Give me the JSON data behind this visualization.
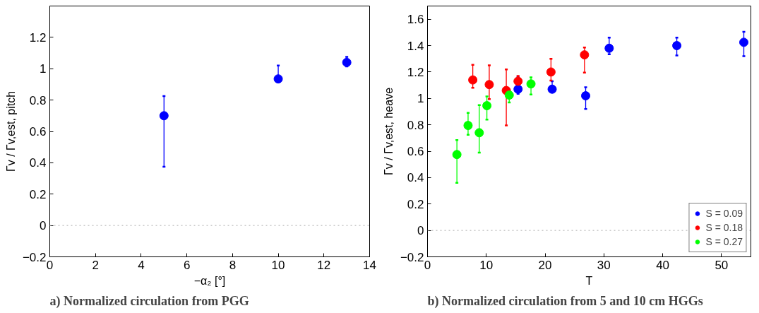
{
  "chart_data": [
    {
      "type": "scatter",
      "title": "a) Normalized circulation from PGG",
      "xlabel": "−α₂ [°]",
      "ylabel": "Γv / Γv,est, pitch",
      "xlim": [
        0,
        14
      ],
      "ylim": [
        -0.2,
        1.4
      ],
      "xticks": [
        0,
        2,
        4,
        6,
        8,
        10,
        12,
        14
      ],
      "yticks": [
        -0.2,
        0,
        0.2,
        0.4,
        0.6,
        0.8,
        1,
        1.2
      ],
      "marker": "circle",
      "grid": false,
      "legend": false,
      "series": [
        {
          "color": "#0000ff",
          "x": [
            5,
            10,
            13
          ],
          "values": [
            0.7,
            0.935,
            1.04
          ],
          "errors": [
            [
              0.375,
              0.825
            ],
            [
              0.915,
              1.02
            ],
            [
              1.015,
              1.075
            ]
          ]
        }
      ],
      "ref_lines": [
        {
          "axis": "y",
          "value": 0,
          "color": "#aaaaaa",
          "line_style": "dotted"
        }
      ]
    },
    {
      "type": "scatter",
      "title": "b) Normalized circulation from 5 and 10 cm HGGs",
      "xlabel": "T",
      "ylabel": "Γv / Γv,est, heave",
      "xlim": [
        0,
        55
      ],
      "ylim": [
        -0.2,
        1.7
      ],
      "xticks": [
        0,
        10,
        20,
        30,
        40,
        50
      ],
      "yticks": [
        -0.2,
        0,
        0.2,
        0.4,
        0.6,
        0.8,
        1,
        1.2,
        1.4,
        1.6
      ],
      "marker": "circle",
      "grid": false,
      "legend": "bottom right",
      "series": [
        {
          "name": "S = 0.09",
          "color": "#0000ff",
          "x": [
            15.4,
            21.2,
            26.9,
            30.9,
            42.4,
            53.8
          ],
          "values": [
            1.07,
            1.07,
            1.02,
            1.38,
            1.4,
            1.425
          ],
          "errors": [
            [
              1.035,
              1.165
            ],
            [
              1.065,
              1.13
            ],
            [
              0.92,
              1.085
            ],
            [
              1.335,
              1.46
            ],
            [
              1.325,
              1.46
            ],
            [
              1.32,
              1.505
            ]
          ]
        },
        {
          "name": "S = 0.18",
          "color": "#ff0000",
          "x": [
            7.7,
            10.5,
            13.4,
            15.4,
            21.0,
            26.7
          ],
          "values": [
            1.14,
            1.105,
            1.06,
            1.13,
            1.2,
            1.33
          ],
          "errors": [
            [
              1.08,
              1.255
            ],
            [
              0.995,
              1.25
            ],
            [
              0.795,
              1.22
            ],
            [
              1.11,
              1.17
            ],
            [
              1.135,
              1.3
            ],
            [
              1.195,
              1.385
            ]
          ]
        },
        {
          "name": "S = 0.27",
          "color": "#00ff00",
          "x": [
            5.0,
            6.9,
            8.8,
            10.1,
            13.9,
            17.6
          ],
          "values": [
            0.575,
            0.795,
            0.74,
            0.945,
            1.025,
            1.11
          ],
          "errors": [
            [
              0.36,
              0.685
            ],
            [
              0.725,
              0.89
            ],
            [
              0.59,
              0.95
            ],
            [
              0.84,
              1.015
            ],
            [
              0.97,
              1.06
            ],
            [
              1.03,
              1.16
            ]
          ]
        }
      ],
      "ref_lines": [
        {
          "axis": "y",
          "value": 0,
          "color": "#aaaaaa",
          "line_style": "dotted"
        }
      ]
    }
  ]
}
